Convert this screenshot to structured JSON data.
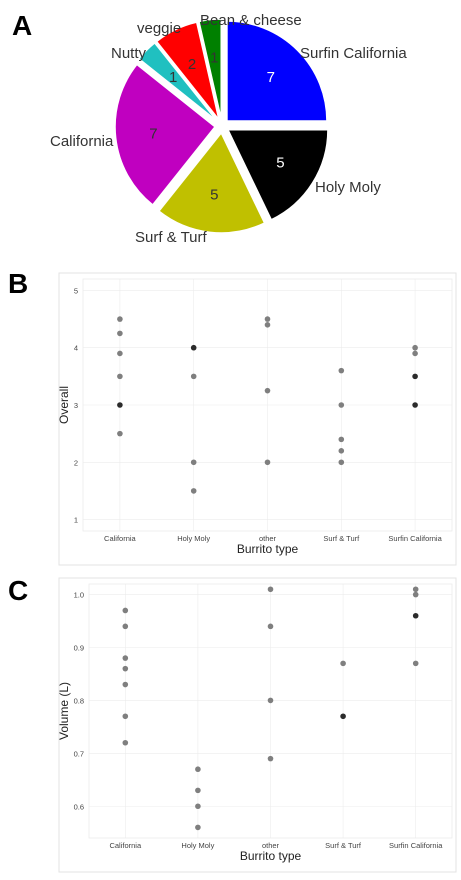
{
  "panels": {
    "a": "A",
    "b": "B",
    "c": "C"
  },
  "chart_data": [
    {
      "type": "pie",
      "categories": [
        "Surfin California",
        "Holy Moly",
        "Surf & Turf",
        "California",
        "Nutty",
        "veggie",
        "Bean & cheese"
      ],
      "values": [
        7,
        5,
        5,
        7,
        1,
        2,
        1
      ],
      "colors": [
        "#0000FF",
        "#000000",
        "#C0C000",
        "#C000C0",
        "#20C0C0",
        "#FF0000",
        "#008000"
      ],
      "label_colors": [
        "#ffffff",
        "#ffffff",
        "#333333",
        "#333333",
        "#333333",
        "#333333",
        "#333333"
      ],
      "exploded": true
    },
    {
      "type": "scatter",
      "xlabel": "Burrito type",
      "ylabel": "Overall",
      "categories": [
        "California",
        "Holy Moly",
        "other",
        "Surf & Turf",
        "Surfin California"
      ],
      "ylim": [
        0.8,
        5.2
      ],
      "yticks": [
        "1",
        "2",
        "3",
        "4",
        "5"
      ],
      "grid": true,
      "points": [
        {
          "x": "California",
          "y": 4.5
        },
        {
          "x": "California",
          "y": 4.25
        },
        {
          "x": "California",
          "y": 3.9
        },
        {
          "x": "California",
          "y": 3.5
        },
        {
          "x": "California",
          "y": 3.0,
          "dark": true
        },
        {
          "x": "California",
          "y": 2.5
        },
        {
          "x": "Holy Moly",
          "y": 4.0,
          "dark": true
        },
        {
          "x": "Holy Moly",
          "y": 3.5
        },
        {
          "x": "Holy Moly",
          "y": 2.0
        },
        {
          "x": "Holy Moly",
          "y": 1.5
        },
        {
          "x": "other",
          "y": 4.5
        },
        {
          "x": "other",
          "y": 4.4
        },
        {
          "x": "other",
          "y": 3.25
        },
        {
          "x": "other",
          "y": 2.0
        },
        {
          "x": "Surf & Turf",
          "y": 3.6
        },
        {
          "x": "Surf & Turf",
          "y": 3.0
        },
        {
          "x": "Surf & Turf",
          "y": 2.4
        },
        {
          "x": "Surf & Turf",
          "y": 2.2
        },
        {
          "x": "Surf & Turf",
          "y": 2.0
        },
        {
          "x": "Surfin California",
          "y": 4.0
        },
        {
          "x": "Surfin California",
          "y": 3.9
        },
        {
          "x": "Surfin California",
          "y": 3.5,
          "dark": true
        },
        {
          "x": "Surfin California",
          "y": 3.0,
          "dark": true
        }
      ]
    },
    {
      "type": "scatter",
      "xlabel": "Burrito type",
      "ylabel": "Volume (L)",
      "categories": [
        "California",
        "Holy Moly",
        "other",
        "Surf & Turf",
        "Surfin California"
      ],
      "ylim": [
        0.54,
        1.02
      ],
      "yticks": [
        "0.6",
        "0.7",
        "0.8",
        "0.9",
        "1.0"
      ],
      "grid": true,
      "points": [
        {
          "x": "California",
          "y": 0.97
        },
        {
          "x": "California",
          "y": 0.94
        },
        {
          "x": "California",
          "y": 0.88
        },
        {
          "x": "California",
          "y": 0.86
        },
        {
          "x": "California",
          "y": 0.83
        },
        {
          "x": "California",
          "y": 0.77
        },
        {
          "x": "California",
          "y": 0.72
        },
        {
          "x": "Holy Moly",
          "y": 0.67
        },
        {
          "x": "Holy Moly",
          "y": 0.63
        },
        {
          "x": "Holy Moly",
          "y": 0.6
        },
        {
          "x": "Holy Moly",
          "y": 0.56
        },
        {
          "x": "other",
          "y": 1.01
        },
        {
          "x": "other",
          "y": 0.94
        },
        {
          "x": "other",
          "y": 0.8
        },
        {
          "x": "other",
          "y": 0.69
        },
        {
          "x": "Surf & Turf",
          "y": 0.87
        },
        {
          "x": "Surf & Turf",
          "y": 0.77,
          "dark": true
        },
        {
          "x": "Surfin California",
          "y": 1.01
        },
        {
          "x": "Surfin California",
          "y": 1.0
        },
        {
          "x": "Surfin California",
          "y": 0.96,
          "dark": true
        },
        {
          "x": "Surfin California",
          "y": 0.87
        }
      ]
    }
  ]
}
